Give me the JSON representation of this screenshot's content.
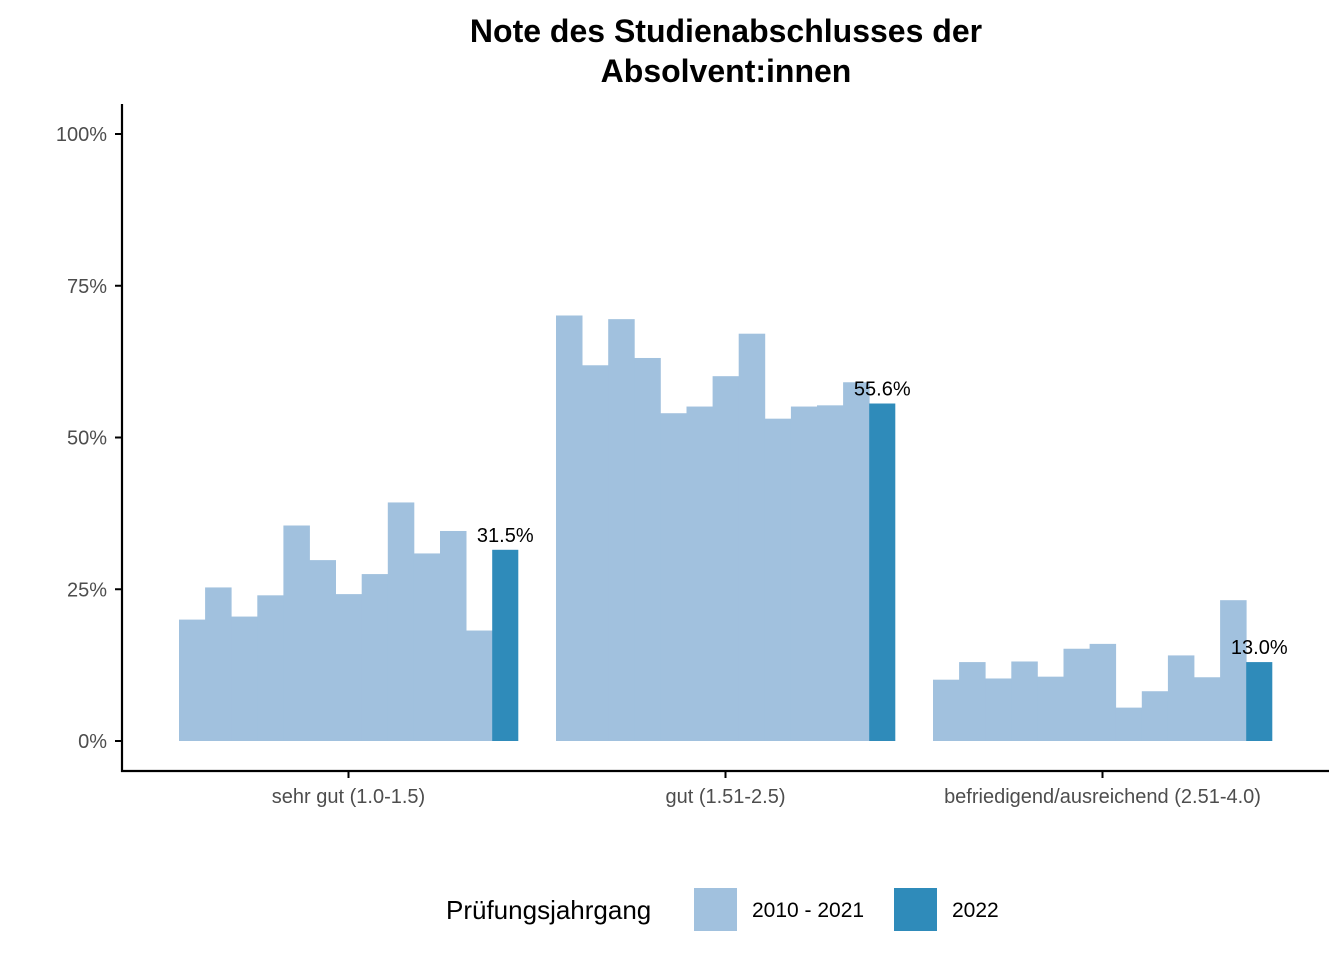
{
  "chart_data": {
    "type": "bar",
    "title_lines": [
      "Note des Studienabschlusses der",
      "Absolvent:innen"
    ],
    "categories": [
      "sehr gut (1.0-1.5)",
      "gut (1.51-2.5)",
      "befriedigend/ausreichend (2.51-4.0)"
    ],
    "y_ticks": [
      "0%",
      "25%",
      "50%",
      "75%",
      "100%"
    ],
    "ylim": [
      0,
      100
    ],
    "grid": false,
    "legend": {
      "title": "Prüfungsjahrgang",
      "position": "bottom",
      "entries": [
        {
          "label": "2010 - 2021",
          "color": "#a1c1de"
        },
        {
          "label": "2022",
          "color": "#2f8bba"
        }
      ]
    },
    "series": [
      {
        "name": "2010 - 2021",
        "color": "#a1c1de",
        "values": [
          [
            20.0,
            25.3,
            20.5,
            24.0,
            35.5,
            29.8,
            24.2,
            27.5,
            39.3,
            30.9,
            34.6,
            18.2
          ],
          [
            70.1,
            61.9,
            69.5,
            63.1,
            54.0,
            55.1,
            60.1,
            67.1,
            53.1,
            55.1,
            55.3,
            59.1
          ],
          [
            10.1,
            13.0,
            10.3,
            13.1,
            10.6,
            15.2,
            16.0,
            5.5,
            8.2,
            14.1,
            10.5,
            23.2
          ]
        ]
      },
      {
        "name": "2022",
        "color": "#2f8bba",
        "values": [
          31.5,
          55.6,
          13.0
        ],
        "labels": [
          "31.5%",
          "55.6%",
          "13.0%"
        ]
      }
    ]
  }
}
